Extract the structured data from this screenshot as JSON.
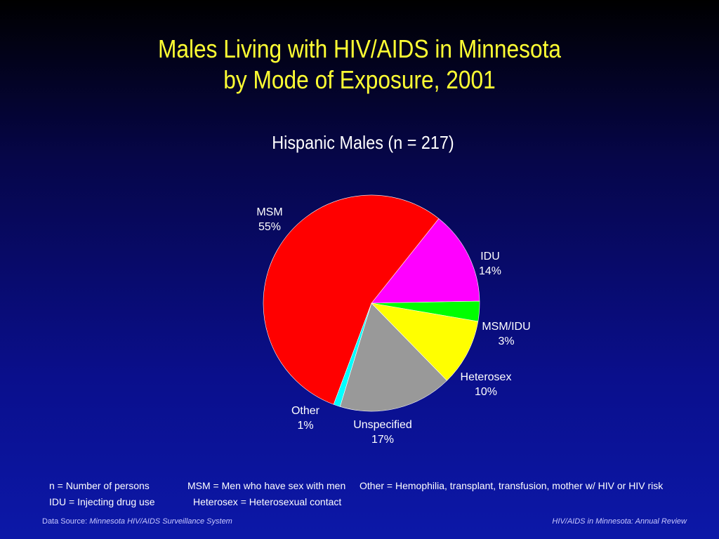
{
  "slide": {
    "title_line1": "Males Living with HIV/AIDS in Minnesota",
    "title_line2": "by Mode of Exposure, 2001",
    "subtitle": "Hispanic Males (n = 217)"
  },
  "colors": {
    "title": "#ffff33",
    "MSM": "#ff0000",
    "IDU": "#ff00ff",
    "MSM/IDU": "#00ff00",
    "Heterosex": "#ffff00",
    "Unspecified": "#999999",
    "Other": "#00ffff"
  },
  "chart_data": {
    "type": "pie",
    "title": "Hispanic Males (n = 217)",
    "slices": [
      {
        "name": "MSM",
        "label": "MSM",
        "value": 55,
        "value_label": "55%"
      },
      {
        "name": "IDU",
        "label": "IDU",
        "value": 14,
        "value_label": "14%"
      },
      {
        "name": "MSM/IDU",
        "label": "MSM/IDU",
        "value": 3,
        "value_label": "3%"
      },
      {
        "name": "Heterosex",
        "label": "Heterosex",
        "value": 10,
        "value_label": "10%"
      },
      {
        "name": "Unspecified",
        "label": "Unspecified",
        "value": 17,
        "value_label": "17%"
      },
      {
        "name": "Other",
        "label": "Other",
        "value": 1,
        "value_label": "1%"
      }
    ]
  },
  "legend": {
    "n": "n = Number of persons",
    "msm": "MSM = Men who have sex with men",
    "other": "Other = Hemophilia, transplant, transfusion, mother w/ HIV or HIV risk",
    "idu": "IDU = Injecting drug use",
    "heterosex": "Heterosex = Heterosexual contact"
  },
  "footer": {
    "source_prefix": "Data Source:",
    "source_name": "Minnesota HIV/AIDS Surveillance System",
    "publication": "HIV/AIDS in Minnesota: Annual Review"
  }
}
